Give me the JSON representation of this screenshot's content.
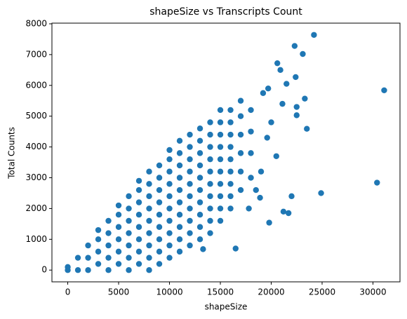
{
  "chart_data": {
    "type": "scatter",
    "title": "shapeSize vs Transcripts Count",
    "x_label": "shapeSize",
    "y_label": "Total Counts",
    "color": "#1f77b4",
    "xlim": [
      -1555,
      32655
    ],
    "ylim": [
      -382,
      8022
    ],
    "xticks": [
      0,
      5000,
      10000,
      15000,
      20000,
      25000,
      30000
    ],
    "yticks": [
      0,
      1000,
      2000,
      3000,
      4000,
      5000,
      6000,
      7000,
      8000
    ],
    "x": [
      0,
      0,
      1000,
      1000,
      2000,
      2000,
      2000,
      3000,
      3000,
      3000,
      3000,
      4000,
      4000,
      4000,
      4000,
      4000,
      5000,
      5000,
      5000,
      5000,
      5000,
      5000,
      6000,
      6000,
      6000,
      6000,
      6000,
      6000,
      6000,
      7000,
      7000,
      7000,
      7000,
      7000,
      7000,
      7000,
      7000,
      8000,
      8000,
      8000,
      8000,
      8000,
      8000,
      8000,
      8000,
      8000,
      9000,
      9000,
      9000,
      9000,
      9000,
      9000,
      9000,
      9000,
      9000,
      10000,
      10000,
      10000,
      10000,
      10000,
      10000,
      10000,
      10000,
      10000,
      10000,
      11000,
      11000,
      11000,
      11000,
      11000,
      11000,
      11000,
      11000,
      11000,
      11000,
      12000,
      12000,
      12000,
      12000,
      12000,
      12000,
      12000,
      12000,
      12000,
      12000,
      13000,
      13000,
      13000,
      13000,
      13000,
      13000,
      13000,
      13000,
      13000,
      13000,
      14000,
      14000,
      14000,
      14000,
      14000,
      14000,
      14000,
      14000,
      14000,
      14000,
      15000,
      15000,
      15000,
      15000,
      15000,
      15000,
      15000,
      15000,
      15000,
      15000,
      16000,
      16000,
      16000,
      16000,
      16000,
      16000,
      16000,
      16000,
      16000,
      17000,
      17000,
      17000,
      17000,
      17000,
      17000,
      18000,
      18000,
      18000,
      18000,
      24200,
      22300,
      23100,
      31100,
      30400,
      24900,
      23500,
      22500,
      22400,
      20600,
      20900,
      22500,
      23300,
      21500,
      21100,
      19800,
      21200,
      21700,
      22000,
      19200,
      20000,
      19600,
      18900,
      17800,
      16500,
      13300,
      19700,
      20500,
      19000,
      18500
    ],
    "values": [
      0,
      100,
      0,
      400,
      0,
      400,
      800,
      200,
      600,
      1000,
      1300,
      0,
      400,
      800,
      1200,
      1600,
      200,
      600,
      1000,
      1400,
      1800,
      2100,
      0,
      400,
      800,
      1200,
      1600,
      2000,
      2400,
      200,
      600,
      1000,
      1400,
      1800,
      2200,
      2600,
      2900,
      0,
      400,
      800,
      1200,
      1600,
      2000,
      2400,
      2800,
      3200,
      200,
      600,
      1000,
      1400,
      1800,
      2200,
      2600,
      3000,
      3400,
      400,
      800,
      1200,
      1600,
      2000,
      2400,
      2800,
      3200,
      3600,
      3900,
      600,
      1000,
      1400,
      1800,
      2200,
      2600,
      3000,
      3400,
      3800,
      4200,
      800,
      1200,
      1600,
      2000,
      2400,
      2800,
      3200,
      3600,
      4000,
      4400,
      1000,
      1400,
      1800,
      2200,
      2600,
      3000,
      3400,
      3800,
      4200,
      4600,
      1200,
      1600,
      2000,
      2400,
      2800,
      3200,
      3600,
      4000,
      4400,
      4800,
      1600,
      2000,
      2400,
      2800,
      3200,
      3600,
      4000,
      4400,
      4800,
      5200,
      2000,
      2400,
      2800,
      3200,
      3600,
      4000,
      4400,
      4800,
      5200,
      2600,
      3200,
      3800,
      4400,
      5000,
      5500,
      3000,
      3800,
      4500,
      5200,
      7640,
      7280,
      7020,
      5840,
      2840,
      2500,
      4590,
      5030,
      6270,
      6720,
      6500,
      5300,
      5570,
      6050,
      5400,
      1540,
      1900,
      1850,
      2400,
      5750,
      4800,
      4300,
      2350,
      2000,
      700,
      680,
      5900,
      3700,
      3200,
      2600
    ]
  }
}
